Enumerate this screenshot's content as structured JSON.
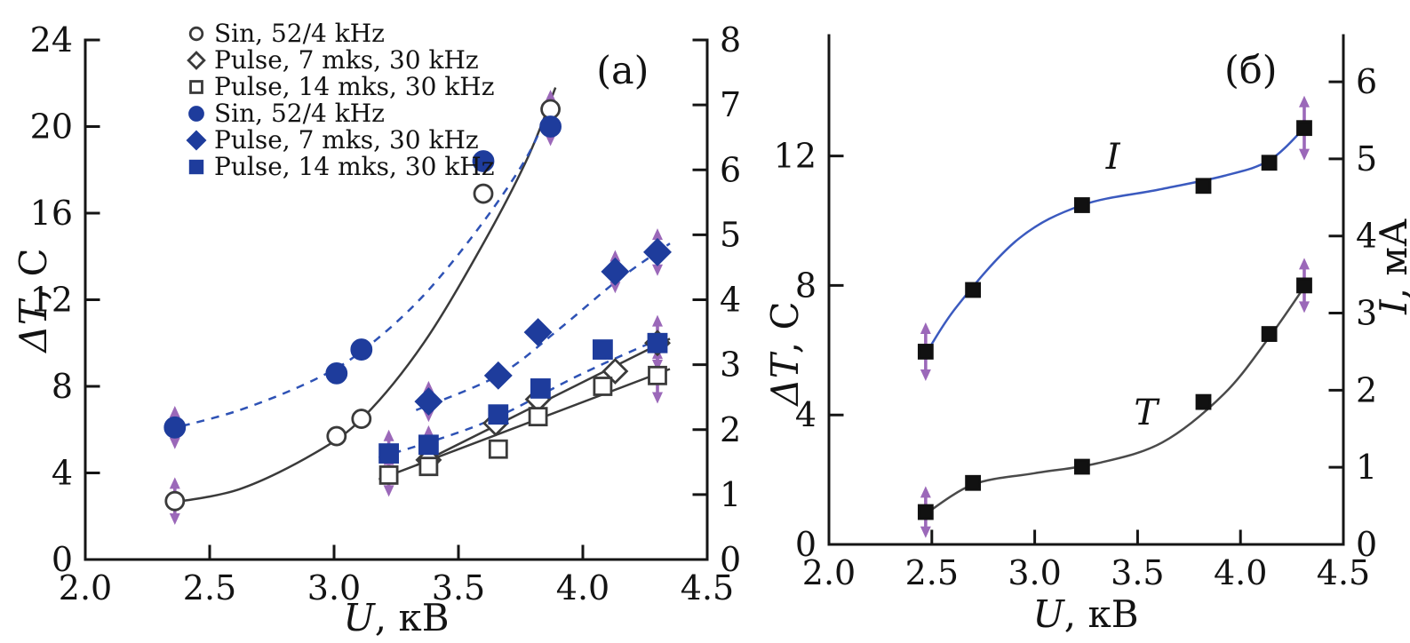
{
  "figure": {
    "type": "scientific-dual-panel-plot",
    "background": "#ffffff"
  },
  "colors": {
    "open_marker_stroke": "#3a3a3a",
    "filled_marker_navy": "#1e3c9c",
    "dashed_line_blue": "#2e52b5",
    "solid_line_dark": "#3a3a3a",
    "error_arrow_purple": "#9b68b9",
    "panel_b_curve_blue": "#3b5abf",
    "panel_b_curve_dark": "#4a4a4a",
    "panel_b_marker_black": "#111111",
    "axis_black": "#151515"
  },
  "chart_data": [
    {
      "panel": "a",
      "type": "scatter",
      "panel_label": "(a)",
      "panel_label_pos": {
        "x": 4.16,
        "y": 22.0
      },
      "xlabel": {
        "italic": "U",
        "rest": ", кВ"
      },
      "ylabel_left": {
        "italic": "ΔT",
        "rest": ", C"
      },
      "ylabel_right": null,
      "xlim": [
        2.0,
        4.5
      ],
      "ylim_left": [
        0,
        24
      ],
      "ylim_right": [
        0,
        8
      ],
      "xticks": [
        "2.0",
        "2.5",
        "3.0",
        "3.5",
        "4.0",
        "4.5"
      ],
      "yticks_left": [
        "0",
        "4",
        "8",
        "12",
        "16",
        "20",
        "24"
      ],
      "yticks_right": [
        "0",
        "1",
        "2",
        "3",
        "4",
        "5",
        "6",
        "7",
        "8"
      ],
      "grid": false,
      "legend_position": "top-left-inside",
      "legend": [
        "Sin, 52/4 kHz",
        "Pulse, 7 mks, 30 kHz",
        "Pulse, 14 mks, 30 kHz",
        "Sin, 52/4 kHz",
        "Pulse, 7 mks, 30 kHz",
        "Pulse, 14 mks, 30 kHz"
      ],
      "series": [
        {
          "name": "Sin, 52/4 kHz",
          "axis": "left",
          "marker": "circle",
          "filled": false,
          "size": 10,
          "marker_color": "#3a3a3a",
          "line": "solid",
          "line_color": "#3a3a3a",
          "points": [
            [
              2.36,
              2.7,
              1.1
            ],
            [
              3.01,
              5.7
            ],
            [
              3.11,
              6.5
            ],
            [
              3.6,
              16.9
            ],
            [
              3.87,
              20.8,
              0.9
            ]
          ],
          "curve": [
            [
              2.33,
              2.6
            ],
            [
              2.62,
              3.25
            ],
            [
              2.92,
              4.9
            ],
            [
              3.12,
              6.6
            ],
            [
              3.36,
              10.0
            ],
            [
              3.6,
              14.6
            ],
            [
              3.78,
              18.6
            ],
            [
              3.89,
              21.8
            ]
          ]
        },
        {
          "name": "Pulse, 7 mks, 30 kHz",
          "axis": "left",
          "marker": "diamond",
          "filled": false,
          "size": 13,
          "marker_color": "#3a3a3a",
          "line": "solid",
          "line_color": "#3a3a3a",
          "points": [
            [
              3.38,
              4.6
            ],
            [
              3.65,
              6.3
            ],
            [
              3.82,
              7.4
            ],
            [
              4.13,
              8.7
            ],
            [
              4.3,
              10.0
            ]
          ],
          "curve": [
            [
              3.33,
              4.35
            ],
            [
              4.35,
              10.2
            ]
          ]
        },
        {
          "name": "Pulse, 14 mks, 30 kHz",
          "axis": "left",
          "marker": "square",
          "filled": false,
          "size": 9.5,
          "marker_color": "#3a3a3a",
          "line": "solid",
          "line_color": "#3a3a3a",
          "points": [
            [
              3.22,
              3.9,
              1.0
            ],
            [
              3.38,
              4.3
            ],
            [
              3.66,
              5.1
            ],
            [
              3.82,
              6.6
            ],
            [
              4.08,
              8.0
            ],
            [
              4.3,
              8.5,
              1.3
            ]
          ],
          "curve": [
            [
              3.18,
              3.7
            ],
            [
              4.35,
              8.8
            ]
          ]
        },
        {
          "name": "Sin, 52/4 kHz",
          "axis": "left",
          "marker": "circle",
          "filled": true,
          "size": 11,
          "marker_color": "#1e3c9c",
          "line": "dashed",
          "line_color": "#2e52b5",
          "points": [
            [
              2.36,
              6.1,
              1.0
            ],
            [
              3.01,
              8.6
            ],
            [
              3.11,
              9.7
            ],
            [
              3.6,
              18.4
            ],
            [
              3.87,
              20.0,
              0.9
            ]
          ],
          "curve": [
            [
              2.33,
              6.0
            ],
            [
              2.62,
              6.9
            ],
            [
              2.92,
              8.3
            ],
            [
              3.12,
              9.7
            ],
            [
              3.36,
              12.2
            ],
            [
              3.6,
              15.6
            ],
            [
              3.78,
              18.7
            ],
            [
              3.88,
              21.3
            ]
          ]
        },
        {
          "name": "Pulse, 7 mks, 30 kHz",
          "axis": "left",
          "marker": "diamond",
          "filled": true,
          "size": 14,
          "marker_color": "#1e3c9c",
          "line": "dashed",
          "line_color": "#2e52b5",
          "points": [
            [
              3.38,
              7.3,
              0.95
            ],
            [
              3.66,
              8.5
            ],
            [
              3.82,
              10.5
            ],
            [
              4.13,
              13.3,
              1.0
            ],
            [
              4.3,
              14.2,
              1.1
            ]
          ],
          "curve": [
            [
              3.33,
              6.9
            ],
            [
              3.66,
              8.5
            ],
            [
              3.9,
              10.6
            ],
            [
              4.14,
              12.9
            ],
            [
              4.35,
              14.6
            ]
          ]
        },
        {
          "name": "Pulse, 14 mks, 30 kHz",
          "axis": "left",
          "marker": "square",
          "filled": true,
          "size": 10,
          "marker_color": "#1e3c9c",
          "line": "dashed",
          "line_color": "#2e52b5",
          "points": [
            [
              3.22,
              4.9,
              1.1
            ],
            [
              3.38,
              5.3,
              0.9
            ],
            [
              3.66,
              6.7
            ],
            [
              3.83,
              7.9
            ],
            [
              4.08,
              9.7
            ],
            [
              4.3,
              10.0,
              1.3
            ]
          ],
          "curve": [
            [
              3.18,
              4.7
            ],
            [
              3.6,
              6.3
            ],
            [
              4.0,
              8.6
            ],
            [
              4.35,
              10.4
            ]
          ]
        }
      ],
      "annotations": []
    },
    {
      "panel": "б",
      "type": "scatter",
      "panel_label": "(б)",
      "panel_label_pos": {
        "x": 4.05,
        "y": 14.25
      },
      "xlabel": {
        "italic": "U",
        "rest": ", кВ"
      },
      "ylabel_left": {
        "italic": "ΔT",
        "rest": ", C"
      },
      "ylabel_right": {
        "italic": "I",
        "rest": ", мА"
      },
      "xlim": [
        2.0,
        4.5
      ],
      "ylim_left": [
        0,
        15.72
      ],
      "ylim_right": [
        0,
        6.6
      ],
      "xticks": [
        "2.0",
        "2.5",
        "3.0",
        "3.5",
        "4.0",
        "4.5"
      ],
      "yticks_left": [
        "0",
        "4",
        "8",
        "12"
      ],
      "yticks_right": [
        "0",
        "1",
        "2",
        "3",
        "4",
        "5",
        "6"
      ],
      "grid": false,
      "legend": [],
      "series": [
        {
          "name": "I",
          "axis": "right",
          "marker": "square",
          "filled": true,
          "size": 7.5,
          "marker_color": "#111111",
          "line": "solid",
          "line_color": "#3b5abf",
          "points": [
            [
              2.47,
              2.5,
              0.38
            ],
            [
              2.7,
              3.3
            ],
            [
              3.23,
              4.4
            ],
            [
              3.82,
              4.65
            ],
            [
              4.14,
              4.95
            ],
            [
              4.31,
              5.4,
              0.42
            ]
          ],
          "curve": [
            [
              2.46,
              2.42
            ],
            [
              2.62,
              3.08
            ],
            [
              2.92,
              3.96
            ],
            [
              3.23,
              4.4
            ],
            [
              3.6,
              4.6
            ],
            [
              3.92,
              4.78
            ],
            [
              4.14,
              4.98
            ],
            [
              4.31,
              5.4
            ]
          ]
        },
        {
          "name": "T",
          "axis": "left",
          "marker": "square",
          "filled": true,
          "size": 7.5,
          "marker_color": "#111111",
          "line": "solid",
          "line_color": "#4a4a4a",
          "points": [
            [
              2.47,
              1.0,
              0.8
            ],
            [
              2.7,
              1.9
            ],
            [
              3.23,
              2.4
            ],
            [
              3.82,
              4.4
            ],
            [
              4.14,
              6.5
            ],
            [
              4.31,
              8.0,
              0.85
            ]
          ],
          "curve": [
            [
              2.46,
              0.9
            ],
            [
              2.7,
              1.85
            ],
            [
              3.0,
              2.2
            ],
            [
              3.3,
              2.5
            ],
            [
              3.62,
              3.15
            ],
            [
              3.92,
              4.65
            ],
            [
              4.14,
              6.4
            ],
            [
              4.31,
              7.95
            ]
          ]
        }
      ],
      "annotations": [
        {
          "text": "I",
          "x": 3.38,
          "y": 11.6,
          "italic": true
        },
        {
          "text": "T",
          "x": 3.54,
          "y": 3.7,
          "italic": true
        }
      ]
    }
  ]
}
